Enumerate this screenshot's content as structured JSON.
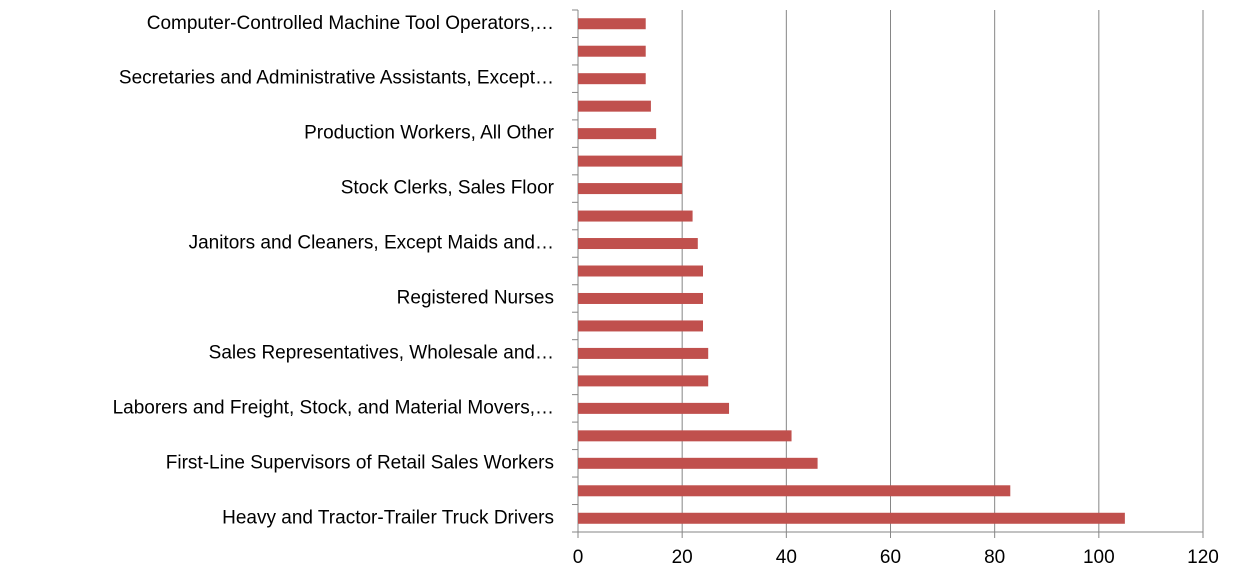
{
  "chart_data": {
    "type": "barh",
    "categories": [
      "Heavy and Tractor-Trailer Truck Drivers",
      null,
      "First-Line Supervisors of Retail Sales Workers",
      null,
      "Laborers and Freight, Stock, and Material Movers,…",
      null,
      "Sales Representatives, Wholesale and…",
      null,
      "Registered Nurses",
      null,
      "Janitors and Cleaners, Except Maids and…",
      null,
      "Stock Clerks, Sales Floor",
      null,
      "Production Workers, All Other",
      null,
      "Secretaries and Administrative Assistants, Except…",
      null,
      "Computer-Controlled Machine Tool Operators,…"
    ],
    "values": [
      105,
      83,
      46,
      41,
      29,
      25,
      25,
      24,
      24,
      24,
      23,
      22,
      20,
      20,
      15,
      14,
      13,
      13,
      13
    ],
    "color": "#c0504d",
    "xlim": [
      0,
      120
    ],
    "xticks": [
      0,
      20,
      40,
      60,
      80,
      100,
      120
    ],
    "grid": true
  }
}
